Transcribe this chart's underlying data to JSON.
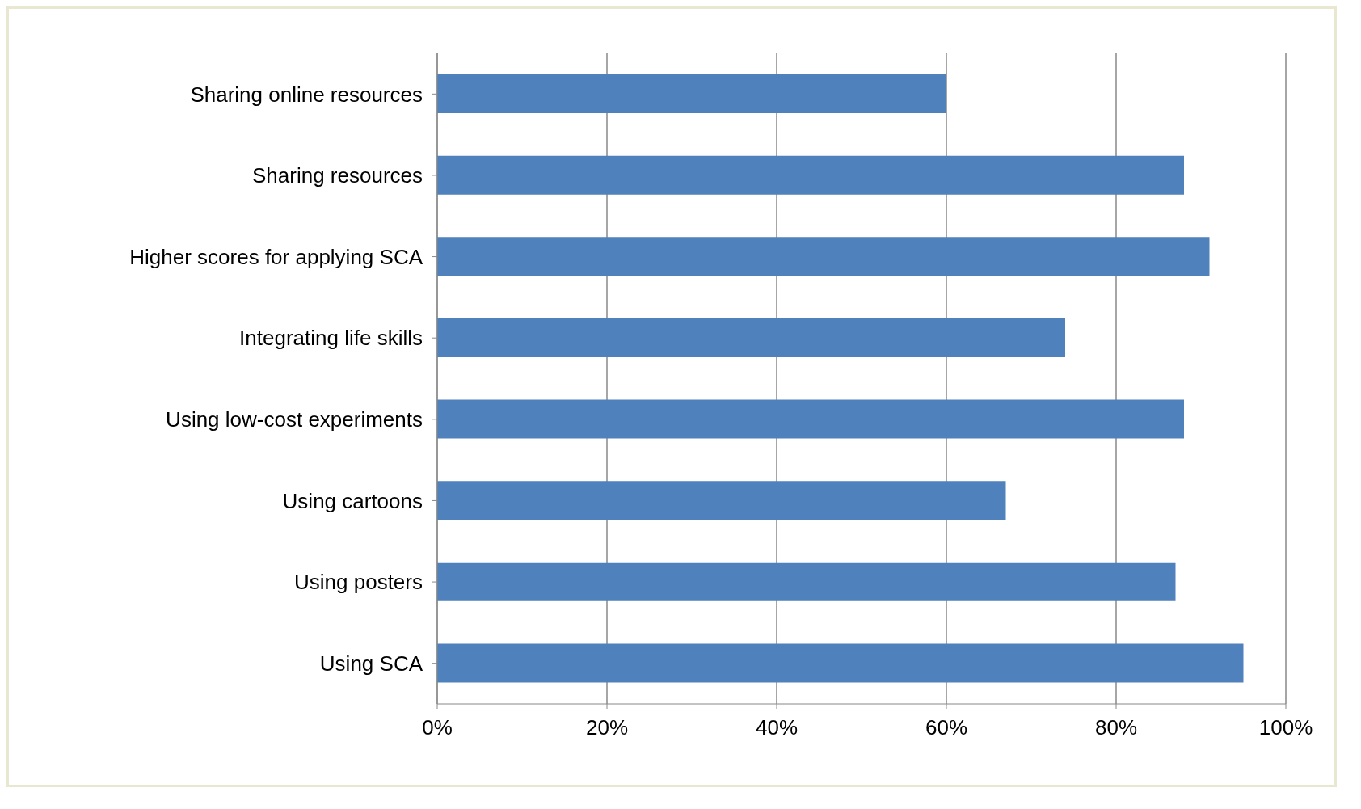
{
  "chart_data": {
    "type": "bar",
    "orientation": "horizontal",
    "categories": [
      "Sharing online resources",
      "Sharing resources",
      "Higher scores for applying SCA",
      "Integrating life skills",
      "Using low-cost experiments",
      "Using cartoons",
      "Using posters",
      "Using SCA"
    ],
    "values": [
      60,
      88,
      91,
      74,
      88,
      67,
      87,
      95
    ],
    "color": "#4f81bd",
    "xlim": [
      0,
      100
    ],
    "xticks": [
      {
        "value": 0,
        "label": "0%"
      },
      {
        "value": 20,
        "label": "20%"
      },
      {
        "value": 40,
        "label": "40%"
      },
      {
        "value": 60,
        "label": "60%"
      },
      {
        "value": 80,
        "label": "80%"
      },
      {
        "value": 100,
        "label": "100%"
      }
    ],
    "grid": "x",
    "legend": false
  }
}
